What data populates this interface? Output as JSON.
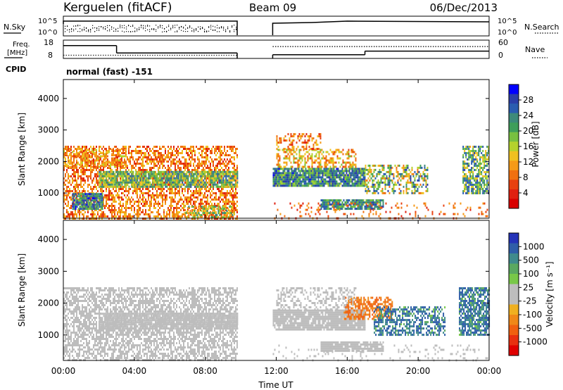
{
  "header": {
    "station": "Kerguelen (fitACF)",
    "beam": "Beam 09",
    "date": "06/Dec/2013"
  },
  "nsky_panel": {
    "label": "N.Sky",
    "right_label": "N.Search",
    "left_ticks": [
      "10^5",
      "10^0"
    ],
    "right_ticks": [
      "10^5",
      "10^0"
    ]
  },
  "freq_panel": {
    "label_line1": "Freq.",
    "label_line2": "[MHz]",
    "right_label": "Nave",
    "left_ticks": [
      "18",
      "8"
    ],
    "right_ticks": [
      "60",
      "0"
    ]
  },
  "cpid": {
    "label": "CPID",
    "value": "normal (fast) -151"
  },
  "power_panel": {
    "ylabel": "Slant Range [km]",
    "yticks": [
      "4000",
      "3000",
      "2000",
      "1000"
    ],
    "colorbar_label": "Power [dB]",
    "colorbar_ticks": [
      "28",
      "24",
      "20",
      "16",
      "12",
      "8",
      "4"
    ],
    "colorbar_colors": [
      "#0000ff",
      "#2b3fa8",
      "#2a5db0",
      "#3d8a7a",
      "#3f9e5a",
      "#78c040",
      "#b4d22c",
      "#f0c020",
      "#f59a18",
      "#f07010",
      "#e84010",
      "#e02010",
      "#d80000"
    ]
  },
  "velocity_panel": {
    "ylabel": "Slant Range [km]",
    "yticks": [
      "4000",
      "3000",
      "2000",
      "1000"
    ],
    "colorbar_label": "Velocity [m s⁻¹]",
    "colorbar_ticks": [
      "1000",
      "500",
      "100",
      "25",
      "-25",
      "-100",
      "-500",
      "-1000"
    ],
    "colorbar_colors": [
      "#2433b8",
      "#2f5ea8",
      "#3f8a8c",
      "#5aa860",
      "#78c848",
      "#bdbdbd",
      "#bdbdbd",
      "#f0b020",
      "#f08818",
      "#f06010",
      "#e83010",
      "#e00000"
    ]
  },
  "xaxis": {
    "label": "Time UT",
    "ticks": [
      "00:00",
      "04:00",
      "08:00",
      "12:00",
      "16:00",
      "20:00",
      "00:00"
    ]
  },
  "chart_data": {
    "type": "heatmap",
    "title": "Kerguelen (fitACF) Beam 09 06/Dec/2013",
    "xlabel": "Time UT",
    "ylabel": "Slant Range [km]",
    "xlim_hours": [
      0,
      24
    ],
    "ylim_km": [
      200,
      4600
    ],
    "data_gap_hours": [
      9.8,
      11.8
    ],
    "freq_mhz": [
      {
        "start": 0.0,
        "end": 3.0,
        "value": 15
      },
      {
        "start": 3.0,
        "end": 9.8,
        "value": 11
      },
      {
        "start": 11.8,
        "end": 17.0,
        "value": 10
      },
      {
        "start": 17.0,
        "end": 24.0,
        "value": 12
      }
    ],
    "power_regions": [
      {
        "t0": 0.0,
        "t1": 9.8,
        "r0": 200,
        "r1": 2500,
        "density": 0.55,
        "level": [
          4,
          14
        ]
      },
      {
        "t0": 2.0,
        "t1": 9.8,
        "r0": 1200,
        "r1": 1700,
        "density": 0.85,
        "level": [
          12,
          26
        ]
      },
      {
        "t0": 0.5,
        "t1": 2.2,
        "r0": 500,
        "r1": 1000,
        "density": 0.9,
        "level": [
          18,
          30
        ]
      },
      {
        "t0": 6.8,
        "t1": 9.6,
        "r0": 200,
        "r1": 600,
        "density": 0.6,
        "level": [
          8,
          24
        ]
      },
      {
        "t0": 0.0,
        "t1": 3.5,
        "r0": 1800,
        "r1": 2400,
        "density": 0.55,
        "level": [
          6,
          16
        ]
      },
      {
        "t0": 11.8,
        "t1": 17.0,
        "r0": 1200,
        "r1": 1800,
        "density": 0.9,
        "level": [
          16,
          30
        ]
      },
      {
        "t0": 12.0,
        "t1": 16.5,
        "r0": 1800,
        "r1": 2400,
        "density": 0.45,
        "level": [
          6,
          18
        ]
      },
      {
        "t0": 14.5,
        "t1": 18.0,
        "r0": 500,
        "r1": 800,
        "density": 0.85,
        "level": [
          18,
          28
        ]
      },
      {
        "t0": 17.0,
        "t1": 20.5,
        "r0": 1000,
        "r1": 1900,
        "density": 0.5,
        "level": [
          8,
          28
        ]
      },
      {
        "t0": 22.5,
        "t1": 24.0,
        "r0": 1000,
        "r1": 2500,
        "density": 0.7,
        "level": [
          12,
          28
        ]
      },
      {
        "t0": 11.8,
        "t1": 24.0,
        "r0": 200,
        "r1": 700,
        "density": 0.12,
        "level": [
          4,
          12
        ]
      },
      {
        "t0": 12.0,
        "t1": 14.5,
        "r0": 2400,
        "r1": 2900,
        "density": 0.4,
        "level": [
          4,
          14
        ]
      }
    ],
    "velocity_regions": [
      {
        "t0": 0.0,
        "t1": 9.8,
        "r0": 200,
        "r1": 2500,
        "density": 0.6,
        "level": [
          -25,
          25
        ]
      },
      {
        "t0": 2.0,
        "t1": 9.8,
        "r0": 1200,
        "r1": 1700,
        "density": 0.9,
        "level": [
          -25,
          25
        ]
      },
      {
        "t0": 11.8,
        "t1": 17.0,
        "r0": 1200,
        "r1": 1800,
        "density": 0.9,
        "level": [
          -25,
          25
        ]
      },
      {
        "t0": 14.5,
        "t1": 18.0,
        "r0": 500,
        "r1": 800,
        "density": 0.85,
        "level": [
          -25,
          25
        ]
      },
      {
        "t0": 15.8,
        "t1": 18.5,
        "r0": 1500,
        "r1": 2200,
        "density": 0.6,
        "level": [
          -500,
          -100
        ]
      },
      {
        "t0": 17.5,
        "t1": 21.5,
        "r0": 1000,
        "r1": 1900,
        "density": 0.55,
        "level": [
          25,
          500
        ]
      },
      {
        "t0": 22.3,
        "t1": 24.0,
        "r0": 1000,
        "r1": 2500,
        "density": 0.7,
        "level": [
          25,
          500
        ]
      },
      {
        "t0": 12.0,
        "t1": 16.5,
        "r0": 1800,
        "r1": 2500,
        "density": 0.4,
        "level": [
          -25,
          25
        ]
      },
      {
        "t0": 11.8,
        "t1": 24.0,
        "r0": 200,
        "r1": 700,
        "density": 0.1,
        "level": [
          -25,
          25
        ]
      }
    ]
  }
}
